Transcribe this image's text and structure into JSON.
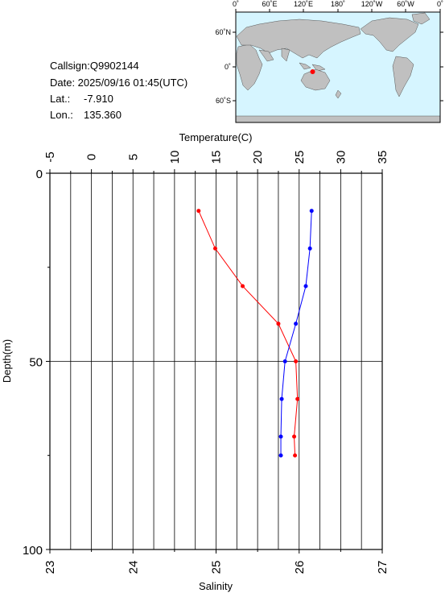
{
  "info": {
    "callsign": "Callsign:Q9902144",
    "date": "Date:  2025/09/16 01:45(UTC)",
    "lat_label": "Lat.:",
    "lat_value": "-7.910",
    "lon_label": "Lon.:",
    "lon_value": "135.360"
  },
  "map": {
    "top_lon_labels": [
      "0˚",
      "60˚E",
      "120˚E",
      "180˚",
      "120˚W",
      "60˚W",
      "0˚"
    ],
    "lat_labels": [
      "60˚N",
      "0˚",
      "60˚S"
    ],
    "ocean_color": "#d6f5ff",
    "land_color": "#c0c0c0",
    "marker_color": "#ff0000",
    "station": {
      "lon": 135.36,
      "lat": -7.91
    }
  },
  "chart_data": {
    "type": "line",
    "title_top_axis": "Temperature(C)",
    "ylabel": "Depth(m)",
    "xlabel_bottom": "Salinity",
    "temperature_ticks": [
      "-5",
      "0",
      "5",
      "10",
      "15",
      "20",
      "25",
      "30",
      "35"
    ],
    "temperature_range": [
      -5,
      35
    ],
    "salinity_ticks": [
      "23",
      "24",
      "25",
      "26",
      "27"
    ],
    "salinity_range": [
      23,
      27
    ],
    "depth_ticks": [
      "0",
      "50",
      "100"
    ],
    "depth_range": [
      0,
      100
    ],
    "grid": true,
    "series": [
      {
        "color": "#ff0000",
        "axis": "temperature",
        "points": [
          {
            "value": 12.9,
            "depth": 10
          },
          {
            "value": 14.9,
            "depth": 20
          },
          {
            "value": 18.2,
            "depth": 30
          },
          {
            "value": 22.5,
            "depth": 40
          },
          {
            "value": 24.6,
            "depth": 50
          },
          {
            "value": 24.8,
            "depth": 60
          },
          {
            "value": 24.4,
            "depth": 70
          },
          {
            "value": 24.5,
            "depth": 75
          }
        ]
      },
      {
        "color": "#0000ff",
        "axis": "temperature",
        "points": [
          {
            "value": 26.5,
            "depth": 10
          },
          {
            "value": 26.3,
            "depth": 20
          },
          {
            "value": 25.8,
            "depth": 30
          },
          {
            "value": 24.6,
            "depth": 40
          },
          {
            "value": 23.3,
            "depth": 50
          },
          {
            "value": 22.9,
            "depth": 60
          },
          {
            "value": 22.8,
            "depth": 70
          },
          {
            "value": 22.8,
            "depth": 75
          }
        ]
      }
    ]
  }
}
